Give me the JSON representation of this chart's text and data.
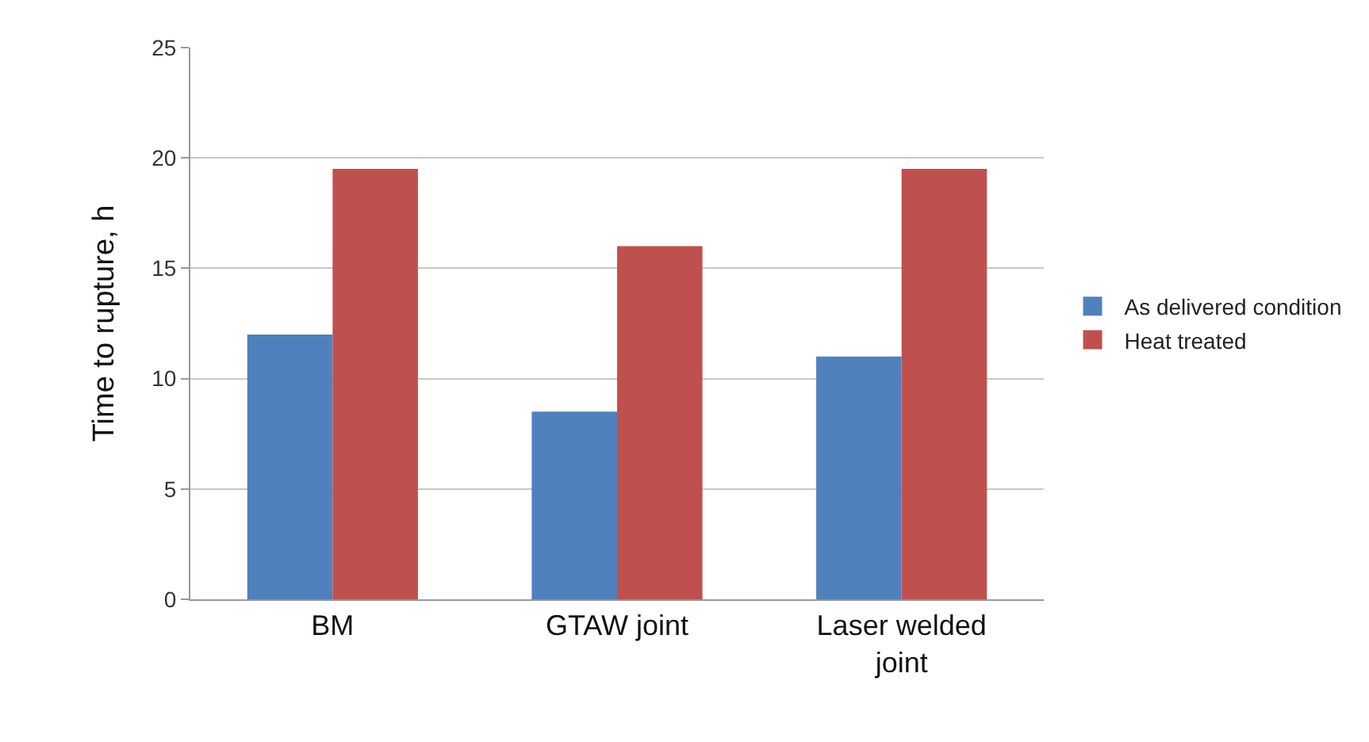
{
  "chart_data": {
    "type": "bar",
    "ylabel": "Time to rupture, h",
    "categories": [
      "BM",
      "GTAW joint",
      "Laser welded joint"
    ],
    "series": [
      {
        "name": "As delivered condition",
        "color": "#4f81bd",
        "values": [
          12,
          8.5,
          11
        ]
      },
      {
        "name": "Heat treated",
        "color": "#c0504d",
        "values": [
          19.5,
          16,
          19.5
        ]
      }
    ],
    "ylim": [
      0,
      25
    ],
    "yticks": [
      0,
      5,
      10,
      15,
      20,
      25
    ],
    "grid": "y",
    "legend": "right"
  }
}
